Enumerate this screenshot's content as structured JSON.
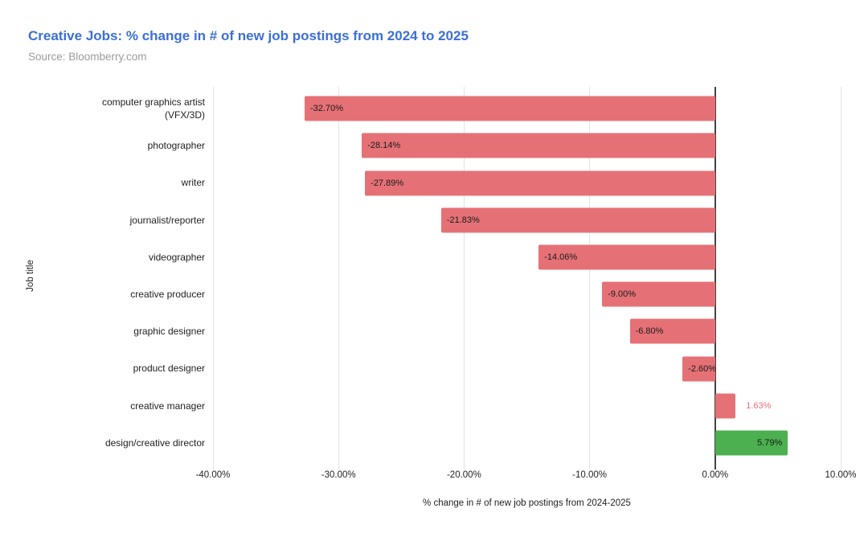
{
  "header": {
    "title": "Creative Jobs: % change in # of new job postings from 2024 to 2025",
    "subtitle": "Source: Bloomberry.com"
  },
  "colors": {
    "title_blue": "#3a6fd8",
    "subtitle_gray": "#9b9b9b",
    "axis_text": "#1f1f1f",
    "gridline": "#e3e3e3",
    "zero_line": "#424242",
    "background": "#ffffff"
  },
  "chart_data": {
    "type": "bar",
    "orientation": "horizontal",
    "title": "Creative Jobs: % change in # of new job postings from 2024 to 2025",
    "subtitle": "Source: Bloomberry.com",
    "xlabel": "% change in # of new job postings from 2024-2025",
    "ylabel": "Job title",
    "xlim": [
      -40,
      10
    ],
    "grid": true,
    "legend": false,
    "categories": [
      "computer graphics artist (VFX/3D)",
      "photographer",
      "writer",
      "journalist/reporter",
      "videographer",
      "creative producer",
      "graphic designer",
      "product designer",
      "creative manager",
      "design/creative director"
    ],
    "values": [
      -32.7,
      -28.14,
      -27.89,
      -21.83,
      -14.06,
      -9.0,
      -6.8,
      -2.6,
      1.63,
      5.79
    ],
    "bar_labels": [
      "-32.70%",
      "-28.14%",
      "-27.89%",
      "-21.83%",
      "-14.06%",
      "-9.00%",
      "-6.80%",
      "-2.60%",
      "1.63%",
      "5.79%"
    ],
    "bar_colors": [
      "#e57176",
      "#e57176",
      "#e57176",
      "#e57176",
      "#e57176",
      "#e57176",
      "#e57176",
      "#e57176",
      "#e57176",
      "#4caf50"
    ],
    "label_positions": [
      "inside-left",
      "inside-left",
      "inside-left",
      "inside-left",
      "inside-left",
      "inside-left",
      "inside-left",
      "inside-left",
      "outside-right",
      "inside-right"
    ],
    "label_colors": [
      "#1b1b1b",
      "#1b1b1b",
      "#1b1b1b",
      "#1b1b1b",
      "#1b1b1b",
      "#1b1b1b",
      "#1b1b1b",
      "#1b1b1b",
      "#e57176",
      "#1b1b1b"
    ],
    "x_ticks": [
      {
        "value": -40,
        "label": "-40.00%"
      },
      {
        "value": -30,
        "label": "-30.00%"
      },
      {
        "value": -20,
        "label": "-20.00%"
      },
      {
        "value": -10,
        "label": "-10.00%"
      },
      {
        "value": 0,
        "label": "0.00%"
      },
      {
        "value": 10,
        "label": "10.00%"
      }
    ]
  }
}
